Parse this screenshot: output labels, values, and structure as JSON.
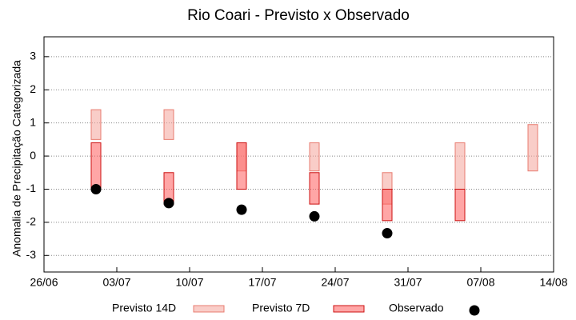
{
  "chart_data": {
    "type": "range",
    "title": "Rio Coari - Previsto x Observado",
    "y_label": "Anomalia de Precipitação Categorizada",
    "x": [
      "01/07",
      "08/07",
      "15/07",
      "22/07",
      "29/07",
      "05/08",
      "12/08"
    ],
    "series": [
      {
        "name": "Previsto 14D",
        "color": "#f4a49a",
        "stroke": "#e87c70",
        "low": [
          0.5,
          0.5,
          -0.45,
          -0.45,
          -1.45,
          -1,
          -0.45
        ],
        "high": [
          1.4,
          1.4,
          0.4,
          0.4,
          -0.5,
          0.4,
          0.95
        ]
      },
      {
        "name": "Previsto 7D",
        "color": "#ff5c5c",
        "stroke": "#cc1111",
        "low": [
          -1,
          -1.45,
          -1,
          -1.45,
          -1.95,
          -1.95,
          null
        ],
        "high": [
          0.4,
          -0.5,
          0.4,
          -0.5,
          -1,
          -1,
          null
        ]
      }
    ],
    "observed": {
      "name": "Observado",
      "color": "#000000",
      "values": [
        -1,
        -1.42,
        -1.62,
        -1.82,
        -2.33,
        null,
        null
      ]
    },
    "xlim": [
      "26/06",
      "14/08"
    ],
    "xticks": [
      "26/06",
      "03/07",
      "10/07",
      "17/07",
      "24/07",
      "31/07",
      "07/08",
      "14/08"
    ],
    "ylim": [
      -3.5,
      3.6
    ],
    "yticks": [
      -3,
      -2,
      -1,
      0,
      1,
      2,
      3
    ],
    "grid": true
  }
}
